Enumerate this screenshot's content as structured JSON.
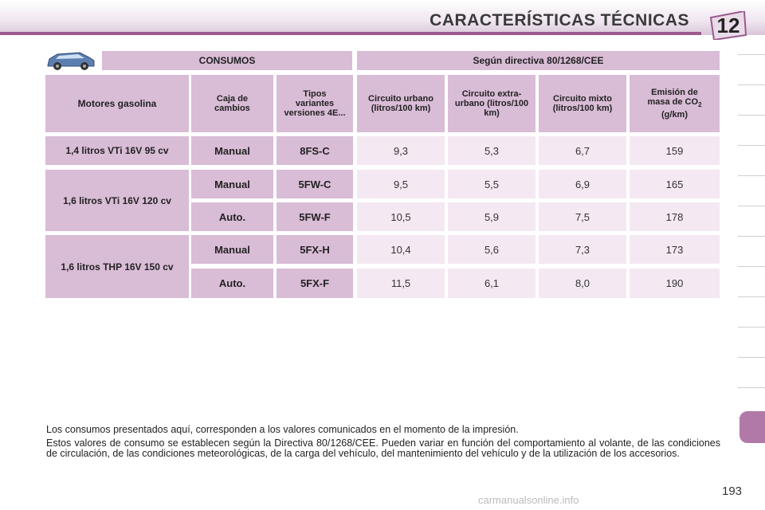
{
  "header": {
    "title": "CARACTERÍSTICAS TÉCNICAS",
    "chapter": "12"
  },
  "table": {
    "consumos_label": "CONSUMOS",
    "directive_label": "Según directiva 80/1268/CEE",
    "columns": {
      "motores": "Motores gasolina",
      "caja": "Caja de cambios",
      "tipos": "Tipos variantes versiones 4E...",
      "urbano": "Circuito urbano (litros/100 km)",
      "extra": "Circuito extra-urbano (litros/100 km)",
      "mixto": "Circuito mixto (litros/100 km)",
      "emision_prefix": "Emisión de masa de CO",
      "emision_sub": "2",
      "emision_suffix": " (g/km)"
    },
    "engines": [
      "1,4 litros VTi 16V 95 cv",
      "1,6 litros VTi 16V 120 cv",
      "1,6 litros THP 16V 150 cv"
    ],
    "rows": [
      {
        "caja": "Manual",
        "tipo": "8FS-C",
        "urbano": "9,3",
        "extra": "5,3",
        "mixto": "6,7",
        "co2": "159"
      },
      {
        "caja": "Manual",
        "tipo": "5FW-C",
        "urbano": "9,5",
        "extra": "5,5",
        "mixto": "6,9",
        "co2": "165"
      },
      {
        "caja": "Auto.",
        "tipo": "5FW-F",
        "urbano": "10,5",
        "extra": "5,9",
        "mixto": "7,5",
        "co2": "178"
      },
      {
        "caja": "Manual",
        "tipo": "5FX-H",
        "urbano": "10,4",
        "extra": "5,6",
        "mixto": "7,3",
        "co2": "173"
      },
      {
        "caja": "Auto.",
        "tipo": "5FX-F",
        "urbano": "11,5",
        "extra": "6,1",
        "mixto": "8,0",
        "co2": "190"
      }
    ]
  },
  "footnotes": [
    "Los consumos presentados aquí, corresponden a los valores comunicados en el momento de la impresión.",
    "Estos valores de consumo se establecen según la Directiva 80/1268/CEE. Pueden variar en función del comportamiento al volante, de las condiciones de circulación, de las condiciones meteorológicas, de la carga del vehículo, del mantenimiento del vehículo y de la utilización de los accesorios."
  ],
  "page_number": "193",
  "watermark": "carmanualsonline.info",
  "colors": {
    "accent": "#9b5a8e",
    "header_cell": "#d9bcd6",
    "value_cell": "#f4e8f2",
    "active_tab": "#b179a8"
  }
}
